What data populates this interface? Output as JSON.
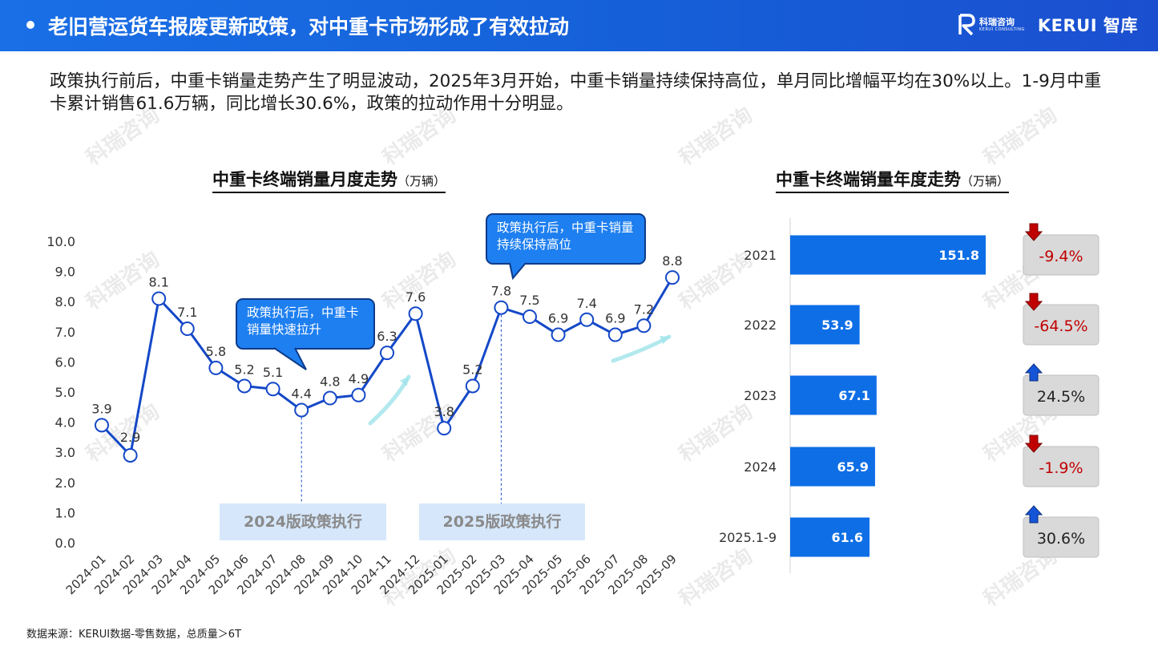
{
  "header": {
    "title": "老旧营运货车报废更新政策，对中重卡市场形成了有效拉动"
  },
  "logo": {
    "cn": "科瑞咨询",
    "en": "KERUI CONSULTING",
    "brand": "KERUI 智库"
  },
  "watermark": {
    "text": "科瑞咨询"
  },
  "intro": {
    "text": "政策执行前后，中重卡销量走势产生了明显波动，2025年3月开始，中重卡销量持续保持高位，单月同比增幅平均在30%以上。1-9月中重卡累计销售61.6万辆，同比增长30.6%，政策的拉动作用十分明显。"
  },
  "left_chart_title": {
    "main": "中重卡终端销量月度走势",
    "unit": "（万辆）"
  },
  "right_chart_title": {
    "main": "中重卡终端销量年度走势",
    "unit": "（万辆）"
  },
  "callouts": {
    "c2024": "政策执行后，中重卡销量快速拉升",
    "c2025": "政策执行后，中重卡销量持续保持高位"
  },
  "policy_boxes": {
    "p2024": "2024版政策执行",
    "p2025": "2025版政策执行"
  },
  "source": {
    "text": "数据来源：KERUI数据-零售数据，总质量＞6T"
  },
  "colors": {
    "header_blue": "#1a6fe6",
    "line_blue": "#1448c8",
    "bar_blue": "#0e6ee6",
    "down_red": "#c00000",
    "up_blue": "#1454d6",
    "badge_gray": "#d9d9d9"
  },
  "chart_data": [
    {
      "type": "line",
      "title": "中重卡终端销量月度走势",
      "unit": "（万辆）",
      "x": [
        "2024-01",
        "2024-02",
        "2024-03",
        "2024-04",
        "2024-05",
        "2024-06",
        "2024-07",
        "2024-08",
        "2024-09",
        "2024-10",
        "2024-11",
        "2024-12",
        "2025-01",
        "2025-02",
        "2025-03",
        "2025-04",
        "2025-05",
        "2025-06",
        "2025-07",
        "2025-08",
        "2025-09"
      ],
      "values": [
        3.9,
        2.9,
        8.1,
        7.1,
        5.8,
        5.2,
        5.1,
        4.4,
        4.8,
        4.9,
        6.3,
        7.6,
        3.8,
        5.2,
        7.8,
        7.5,
        6.9,
        7.4,
        6.9,
        7.2,
        8.8
      ],
      "labels": [
        "3.9",
        "2.9",
        "8.1",
        "7.1",
        "5.8",
        "5.2",
        "5.1",
        "4.4",
        "4.8",
        "4.9",
        "6.3",
        "7.6",
        "3.8",
        "5.2",
        "7.8",
        "7.5",
        "6.9",
        "7.4",
        "6.9",
        "7.2",
        "8.8"
      ],
      "yticks": [
        "0.0",
        "1.0",
        "2.0",
        "3.0",
        "4.0",
        "5.0",
        "6.0",
        "7.0",
        "8.0",
        "9.0",
        "10.0"
      ],
      "ylim": [
        0,
        10
      ],
      "grid": false,
      "markers": [
        {
          "category": "2024-08",
          "label": "2024版政策执行"
        },
        {
          "category": "2025-03",
          "label": "2025版政策执行"
        }
      ]
    },
    {
      "type": "bar",
      "orientation": "horizontal",
      "title": "中重卡终端销量年度走势",
      "unit": "（万辆）",
      "categories": [
        "2021",
        "2022",
        "2023",
        "2024",
        "2025.1-9"
      ],
      "values": [
        151.8,
        53.9,
        67.1,
        65.9,
        61.6
      ],
      "value_labels": [
        "151.8",
        "53.9",
        "67.1",
        "65.9",
        "61.6"
      ],
      "yoy": [
        {
          "text": "-9.4%",
          "direction": "down"
        },
        {
          "text": "-64.5%",
          "direction": "down"
        },
        {
          "text": "24.5%",
          "direction": "up"
        },
        {
          "text": "-1.9%",
          "direction": "down"
        },
        {
          "text": "30.6%",
          "direction": "up"
        }
      ]
    }
  ]
}
